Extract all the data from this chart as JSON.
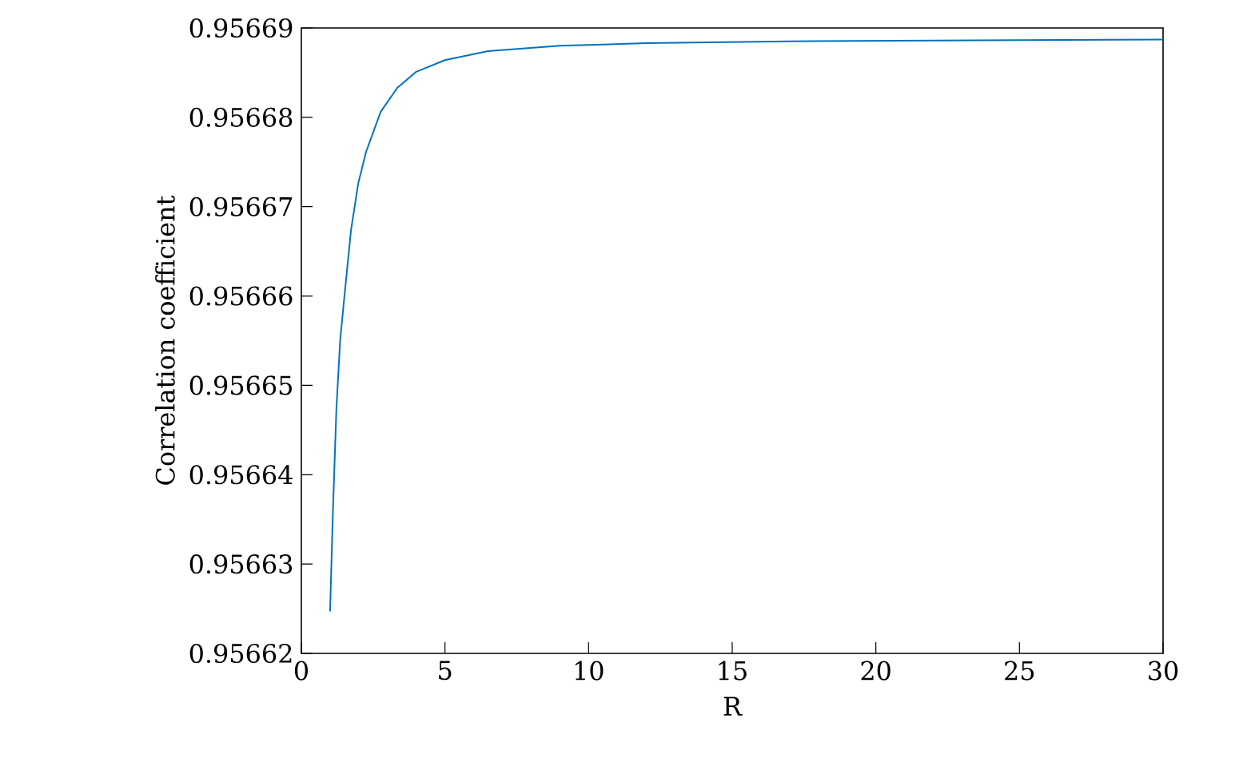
{
  "chart_data": {
    "type": "line",
    "xlabel": "R",
    "ylabel": "Correlation coefficient",
    "x": [
      1.0,
      1.1,
      1.22,
      1.35,
      1.5,
      1.73,
      1.98,
      2.25,
      2.76,
      3.34,
      4.0,
      5.0,
      6.5,
      9.0,
      12.0,
      17.0,
      22.0,
      30.0
    ],
    "series": [
      {
        "color": "#0072bd",
        "values": [
          0.9566247,
          0.956636,
          0.9566474,
          0.956655,
          0.95666,
          0.9566674,
          0.9566726,
          0.9566761,
          0.9566806,
          0.9566833,
          0.9566851,
          0.9566864,
          0.9566874,
          0.956688,
          0.9566883,
          0.9566885,
          0.9566886,
          0.9566887
        ]
      }
    ],
    "xlim": [
      0,
      30
    ],
    "ylim": [
      0.95662,
      0.95669
    ],
    "xticks": [
      0,
      5,
      10,
      15,
      20,
      25,
      30
    ],
    "yticks": [
      0.95662,
      0.95663,
      0.95664,
      0.95665,
      0.95666,
      0.95667,
      0.95668,
      0.95669
    ],
    "marker": "none",
    "line_style": "solid"
  }
}
